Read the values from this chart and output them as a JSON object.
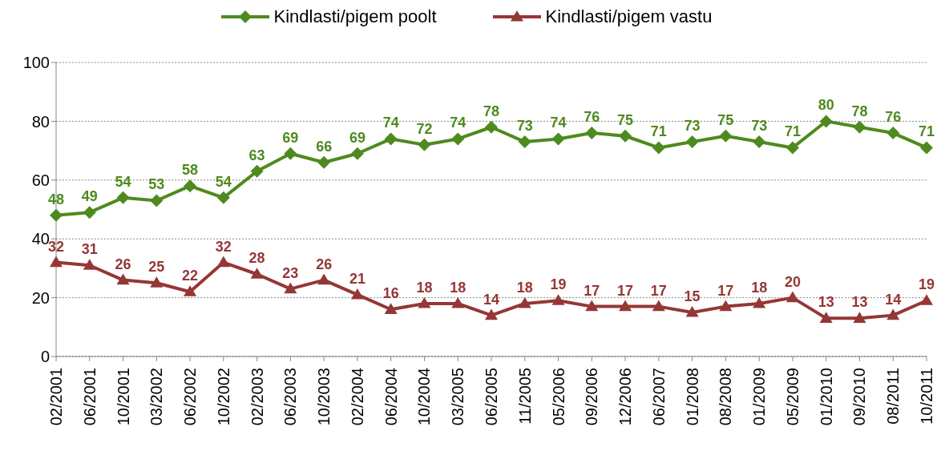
{
  "chart_data": {
    "type": "line",
    "categories": [
      "02/2001",
      "06/2001",
      "10/2001",
      "03/2002",
      "06/2002",
      "10/2002",
      "02/2003",
      "06/2003",
      "10/2003",
      "02/2004",
      "06/2004",
      "10/2004",
      "03/2005",
      "06/2005",
      "11/2005",
      "05/2006",
      "09/2006",
      "12/2006",
      "06/2007",
      "01/2008",
      "08/2008",
      "01/2009",
      "05/2009",
      "01/2010",
      "09/2010",
      "08/2011",
      "10/2011"
    ],
    "series": [
      {
        "name": "Kindlasti/pigem poolt",
        "color": "#4e8a1e",
        "marker": "diamond",
        "values": [
          48,
          49,
          54,
          53,
          58,
          54,
          63,
          69,
          66,
          69,
          74,
          72,
          74,
          78,
          73,
          74,
          76,
          75,
          71,
          73,
          75,
          73,
          71,
          80,
          78,
          76,
          71
        ]
      },
      {
        "name": "Kindlasti/pigem vastu",
        "color": "#953735",
        "marker": "triangle",
        "values": [
          32,
          31,
          26,
          25,
          22,
          32,
          28,
          23,
          26,
          21,
          16,
          18,
          18,
          14,
          18,
          19,
          17,
          17,
          17,
          15,
          17,
          18,
          20,
          13,
          13,
          14,
          19
        ]
      }
    ],
    "ylim": [
      0,
      100
    ],
    "yticks": [
      0,
      20,
      40,
      60,
      80,
      100
    ],
    "grid": "y",
    "legend": "top",
    "data_labels": true,
    "line_style": "solid"
  }
}
